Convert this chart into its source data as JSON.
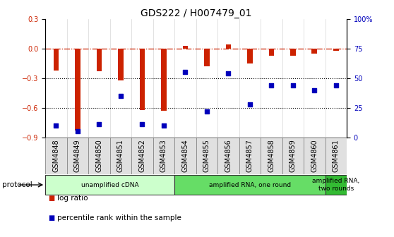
{
  "title": "GDS222 / H007479_01",
  "samples": [
    "GSM4848",
    "GSM4849",
    "GSM4850",
    "GSM4851",
    "GSM4852",
    "GSM4853",
    "GSM4854",
    "GSM4855",
    "GSM4856",
    "GSM4857",
    "GSM4858",
    "GSM4859",
    "GSM4860",
    "GSM4861"
  ],
  "log_ratio": [
    -0.22,
    -0.83,
    -0.23,
    -0.32,
    -0.62,
    -0.63,
    0.03,
    -0.18,
    0.04,
    -0.15,
    -0.07,
    -0.07,
    -0.05,
    -0.02
  ],
  "percentile_rank": [
    10,
    5,
    11,
    35,
    11,
    10,
    55,
    22,
    54,
    28,
    44,
    44,
    40,
    44
  ],
  "ylim_left": [
    -0.9,
    0.3
  ],
  "ylim_right": [
    0,
    100
  ],
  "yticks_left": [
    -0.9,
    -0.6,
    -0.3,
    0.0,
    0.3
  ],
  "yticks_right": [
    0,
    25,
    50,
    75,
    100
  ],
  "ytick_labels_right": [
    "0",
    "25",
    "50",
    "75",
    "100%"
  ],
  "hline_y": 0.0,
  "dotted_lines": [
    -0.3,
    -0.6
  ],
  "bar_color": "#CC2200",
  "scatter_color": "#0000BB",
  "protocol_groups": [
    {
      "label": "unamplified cDNA",
      "start": 0,
      "end": 5,
      "color": "#CCFFCC"
    },
    {
      "label": "amplified RNA, one round",
      "start": 6,
      "end": 12,
      "color": "#66DD66"
    },
    {
      "label": "amplified RNA,\ntwo rounds",
      "start": 13,
      "end": 13,
      "color": "#33BB33"
    }
  ],
  "legend_entries": [
    {
      "label": "log ratio",
      "color": "#CC2200"
    },
    {
      "label": "percentile rank within the sample",
      "color": "#0000BB"
    }
  ],
  "title_fontsize": 10,
  "tick_fontsize": 7,
  "protocol_label": "protocol",
  "bar_width": 0.25
}
